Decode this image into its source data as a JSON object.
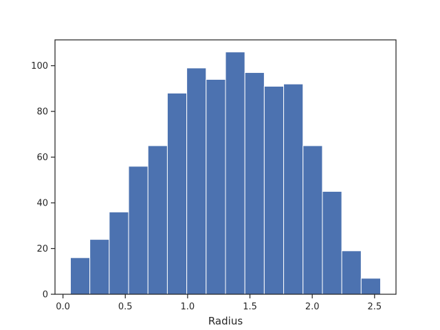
{
  "chart_data": {
    "type": "bar",
    "histogram": true,
    "title": "",
    "xlabel": "Radius",
    "ylabel": "",
    "bin_edges": [
      0.06,
      0.2155,
      0.371,
      0.5265,
      0.682,
      0.8375,
      0.993,
      1.1485,
      1.304,
      1.4595,
      1.615,
      1.7705,
      1.926,
      2.0815,
      2.237,
      2.3925,
      2.548
    ],
    "values": [
      16,
      24,
      36,
      56,
      65,
      88,
      99,
      94,
      106,
      97,
      91,
      92,
      65,
      45,
      19,
      7
    ],
    "xlim": [
      -0.064,
      2.672
    ],
    "ylim": [
      0,
      111.3
    ],
    "x_ticks": [
      0.0,
      0.5,
      1.0,
      1.5,
      2.0,
      2.5
    ],
    "x_tick_labels": [
      "0.0",
      "0.5",
      "1.0",
      "1.5",
      "2.0",
      "2.5"
    ],
    "y_ticks": [
      0,
      20,
      40,
      60,
      80,
      100
    ],
    "y_tick_labels": [
      "0",
      "20",
      "40",
      "60",
      "80",
      "100"
    ],
    "grid": false,
    "bar_color": "#4c72b0",
    "edge_color": "#ffffff"
  }
}
